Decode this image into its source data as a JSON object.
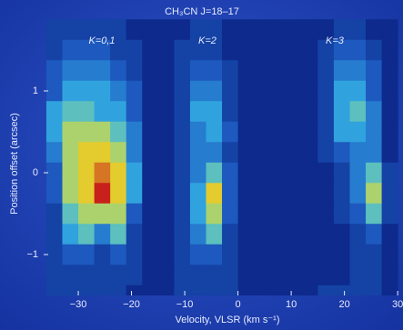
{
  "chart_data": {
    "type": "heatmap",
    "title": "CH₃CN J=18–17",
    "annotations": [
      "K=0,1",
      "K=2",
      "K=3"
    ],
    "xlabel": "Velocity, VLSR (km s⁻¹)",
    "ylabel": "Position offset (arcsec)",
    "xlim": [
      -36.5,
      31
    ],
    "ylim": [
      -1.5,
      1.9
    ],
    "xticks": [
      {
        "value": -30,
        "label": "−30"
      },
      {
        "value": -20,
        "label": "−20"
      },
      {
        "value": -10,
        "label": "−10"
      },
      0,
      10,
      20,
      30
    ],
    "yticks": [
      1,
      0,
      {
        "value": -1,
        "label": "−1"
      }
    ],
    "colorscale": [
      "#0d2a8c",
      "#1f5fc4",
      "#35b6e6",
      "#e8e030",
      "#c8201a"
    ],
    "x": [
      -34.5,
      -31.5,
      -28.5,
      -25.5,
      -22.5,
      -19.5,
      -16.5,
      -13.5,
      -10.5,
      -7.5,
      -4.5,
      -1.5,
      1.5,
      4.5,
      7.5,
      10.5,
      13.5,
      16.5,
      19.5,
      22.5,
      25.5,
      28.5
    ],
    "y": [
      1.75,
      1.5,
      1.25,
      1.0,
      0.75,
      0.5,
      0.25,
      0,
      -0.25,
      -0.5,
      -0.75,
      -1.0,
      -1.25,
      -1.5
    ],
    "z": [
      [
        0.2,
        0.2,
        0.2,
        0.2,
        0.2,
        0.1,
        0.1,
        0.1,
        0.1,
        0.2,
        0.2,
        0.1,
        0.1,
        0.1,
        0.1,
        0.1,
        0.1,
        0.1,
        0.2,
        0.2,
        0.1,
        0.1
      ],
      [
        0.2,
        0.3,
        0.3,
        0.3,
        0.2,
        0.2,
        0.1,
        0.1,
        0.2,
        0.2,
        0.2,
        0.1,
        0.1,
        0.1,
        0.1,
        0.1,
        0.1,
        0.2,
        0.3,
        0.3,
        0.2,
        0.1
      ],
      [
        0.3,
        0.4,
        0.4,
        0.4,
        0.3,
        0.2,
        0.1,
        0.1,
        0.2,
        0.3,
        0.3,
        0.2,
        0.1,
        0.1,
        0.1,
        0.1,
        0.1,
        0.2,
        0.4,
        0.4,
        0.3,
        0.1
      ],
      [
        0.3,
        0.5,
        0.5,
        0.5,
        0.4,
        0.3,
        0.1,
        0.1,
        0.2,
        0.4,
        0.4,
        0.2,
        0.1,
        0.1,
        0.1,
        0.1,
        0.1,
        0.2,
        0.5,
        0.5,
        0.3,
        0.1
      ],
      [
        0.5,
        0.6,
        0.6,
        0.5,
        0.5,
        0.3,
        0.1,
        0.1,
        0.2,
        0.5,
        0.5,
        0.2,
        0.1,
        0.1,
        0.1,
        0.1,
        0.1,
        0.2,
        0.5,
        0.6,
        0.4,
        0.1
      ],
      [
        0.5,
        0.7,
        0.7,
        0.7,
        0.6,
        0.4,
        0.1,
        0.1,
        0.2,
        0.4,
        0.5,
        0.3,
        0.1,
        0.1,
        0.1,
        0.1,
        0.1,
        0.2,
        0.5,
        0.5,
        0.4,
        0.1
      ],
      [
        0.4,
        0.7,
        0.8,
        0.8,
        0.7,
        0.4,
        0.1,
        0.1,
        0.2,
        0.4,
        0.4,
        0.2,
        0.1,
        0.1,
        0.1,
        0.1,
        0.1,
        0.2,
        0.3,
        0.4,
        0.4,
        0.1
      ],
      [
        0.3,
        0.7,
        0.8,
        0.9,
        0.8,
        0.5,
        0.1,
        0.1,
        0.2,
        0.4,
        0.6,
        0.3,
        0.1,
        0.1,
        0.1,
        0.1,
        0.1,
        0.1,
        0.2,
        0.4,
        0.6,
        0.2
      ],
      [
        0.3,
        0.7,
        0.8,
        1.0,
        0.8,
        0.5,
        0.1,
        0.1,
        0.2,
        0.5,
        0.8,
        0.3,
        0.1,
        0.1,
        0.1,
        0.1,
        0.1,
        0.1,
        0.2,
        0.4,
        0.7,
        0.2
      ],
      [
        0.2,
        0.6,
        0.7,
        0.7,
        0.7,
        0.3,
        0.1,
        0.1,
        0.2,
        0.5,
        0.7,
        0.3,
        0.1,
        0.1,
        0.1,
        0.1,
        0.1,
        0.1,
        0.2,
        0.3,
        0.6,
        0.2
      ],
      [
        0.2,
        0.5,
        0.6,
        0.4,
        0.6,
        0.2,
        0.1,
        0.1,
        0.2,
        0.4,
        0.6,
        0.2,
        0.1,
        0.1,
        0.1,
        0.1,
        0.1,
        0.1,
        0.1,
        0.2,
        0.3,
        0.1
      ],
      [
        0.2,
        0.3,
        0.3,
        0.2,
        0.3,
        0.2,
        0.1,
        0.1,
        0.2,
        0.3,
        0.3,
        0.2,
        0.1,
        0.1,
        0.1,
        0.1,
        0.1,
        0.1,
        0.1,
        0.2,
        0.2,
        0.1
      ],
      [
        0.2,
        0.2,
        0.2,
        0.2,
        0.2,
        0.2,
        0.1,
        0.1,
        0.2,
        0.2,
        0.2,
        0.2,
        0.1,
        0.1,
        0.1,
        0.1,
        0.1,
        0.1,
        0.1,
        0.2,
        0.2,
        0.1
      ],
      [
        0.2,
        0.2,
        0.2,
        0.2,
        0.2,
        0.1,
        0.1,
        0.1,
        0.2,
        0.2,
        0.2,
        0.2,
        0.1,
        0.1,
        0.1,
        0.1,
        0.1,
        0.2,
        0.2,
        0.2,
        0.2,
        0.1
      ]
    ]
  }
}
